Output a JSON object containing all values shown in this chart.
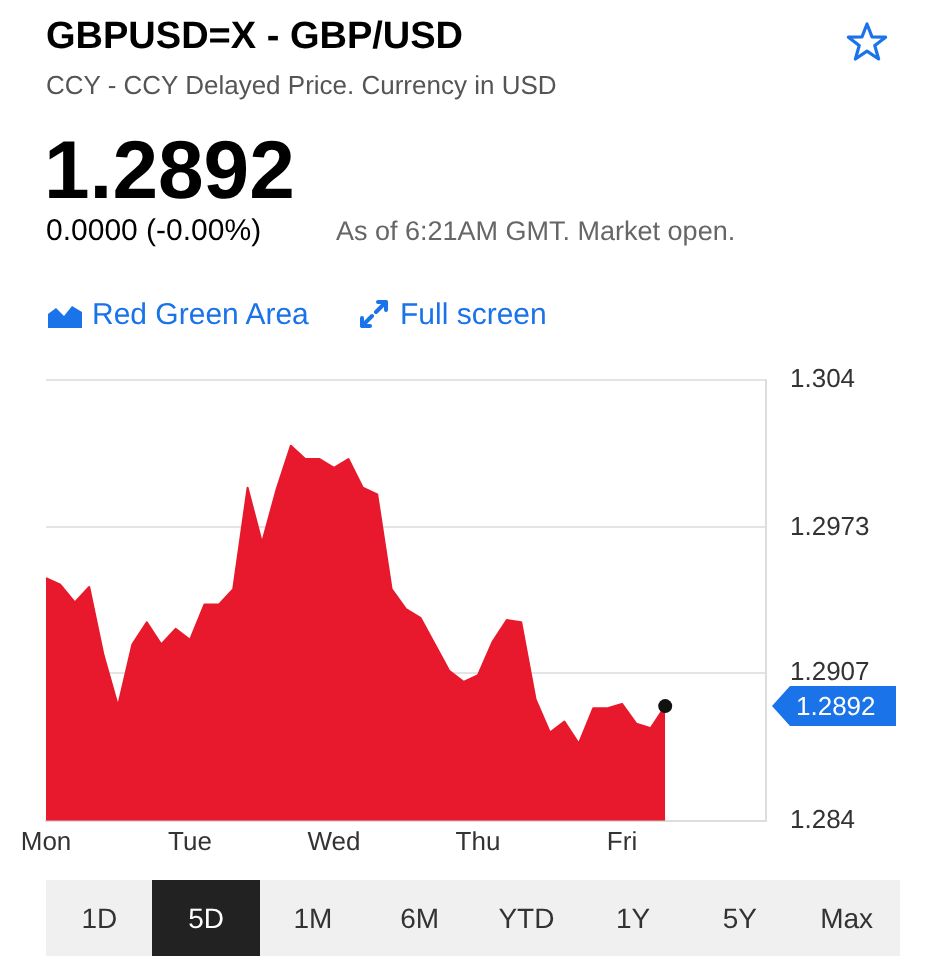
{
  "chart_data": {
    "type": "area",
    "title": "GBPUSD=X - GBP/USD",
    "subtitle": "CCY - CCY Delayed Price. Currency in USD",
    "color": "#e8192c",
    "categories": [
      "Mon",
      null,
      null,
      null,
      null,
      null,
      null,
      null,
      null,
      null,
      "Tue",
      null,
      null,
      null,
      null,
      null,
      null,
      null,
      null,
      null,
      "Wed",
      null,
      null,
      null,
      null,
      null,
      null,
      null,
      null,
      null,
      "Thu",
      null,
      null,
      null,
      null,
      null,
      null,
      null,
      null,
      null,
      "Fri",
      null,
      null,
      null,
      null,
      null,
      null,
      null,
      null,
      null,
      null
    ],
    "values": [
      1.295,
      1.2947,
      1.2939,
      1.2946,
      1.2915,
      1.2892,
      1.292,
      1.293,
      1.292,
      1.2927,
      1.2922,
      1.2938,
      1.2938,
      1.2945,
      1.2991,
      1.2966,
      1.299,
      1.301,
      1.3004,
      1.3004,
      1.3,
      1.3004,
      1.2991,
      1.2988,
      1.2945,
      1.2936,
      1.2932,
      1.292,
      1.2908,
      1.2903,
      1.2906,
      1.2921,
      1.2931,
      1.293,
      1.2895,
      1.288,
      1.2885,
      1.2875,
      1.2891,
      1.2891,
      1.2893,
      1.2884,
      1.2882,
      1.2892,
      null,
      null,
      null,
      null,
      null,
      null,
      null
    ],
    "ylim": [
      1.284,
      1.304
    ],
    "yticks": [
      1.284,
      1.2907,
      1.2973,
      1.304
    ],
    "grid": "y",
    "annotations": [
      "1.2892",
      "0.0000 (-0.00%)",
      "As of 6:21AM GMT. Market open.",
      "Red Green Area",
      "Full screen",
      "1D",
      "5D",
      "1M",
      "6M",
      "YTD",
      "1Y",
      "5Y",
      "Max",
      "1.2892"
    ]
  }
}
